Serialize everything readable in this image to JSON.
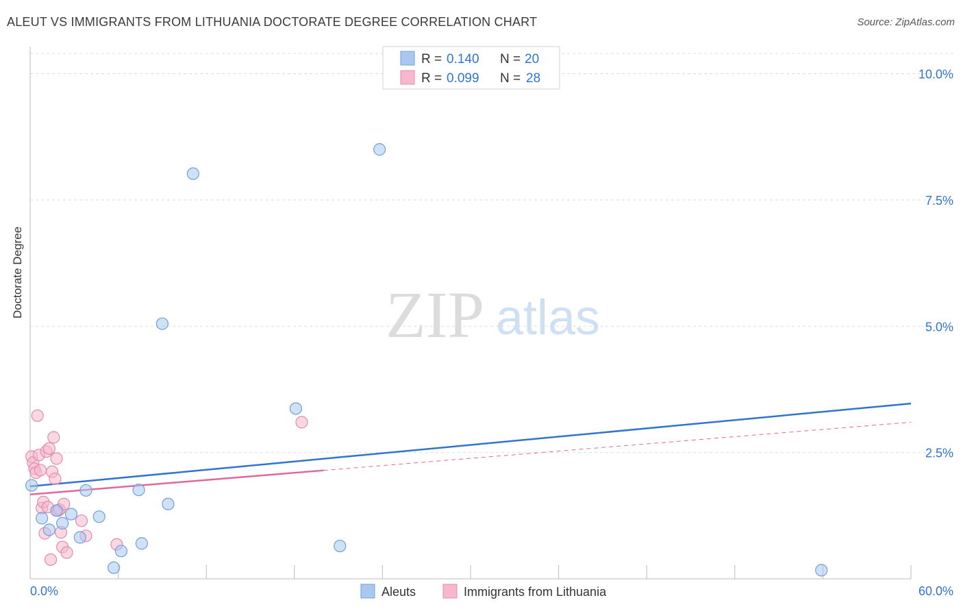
{
  "header": {
    "title": "ALEUT VS IMMIGRANTS FROM LITHUANIA DOCTORATE DEGREE CORRELATION CHART",
    "source": "Source: ZipAtlas.com"
  },
  "watermark": {
    "zip": "ZIP",
    "atlas": "atlas"
  },
  "legend_top": {
    "rows": [
      {
        "r_label": "R =",
        "r_value": "0.140",
        "n_label": "N =",
        "n_value": "20",
        "color": "#a8c8f0"
      },
      {
        "r_label": "R =",
        "r_value": "0.099",
        "n_label": "N =",
        "n_value": "28",
        "color": "#f6b8cc"
      }
    ]
  },
  "chart_data": {
    "type": "scatter",
    "ylabel": "Doctorate Degree",
    "xlabel": "",
    "xlim": [
      0,
      60
    ],
    "ylim": [
      0,
      10.4
    ],
    "x_tick_labels": [
      "0.0%",
      "60.0%"
    ],
    "y_tick_labels": [
      {
        "value": 2.5,
        "label": "2.5%"
      },
      {
        "value": 5.0,
        "label": "5.0%"
      },
      {
        "value": 7.5,
        "label": "7.5%"
      },
      {
        "value": 10.0,
        "label": "10.0%"
      }
    ],
    "grid": true,
    "legend_position": "bottom-center",
    "series": [
      {
        "name": "Aleuts",
        "color": "#a8c8f0",
        "stroke": "#6f9fd8",
        "line_color": "#2e74d0",
        "trend": {
          "x0": 0,
          "y0": 1.83,
          "x1": 60,
          "y1": 3.47,
          "dashed_from": null
        },
        "points": [
          [
            0.1,
            1.85
          ],
          [
            0.8,
            1.2
          ],
          [
            1.3,
            0.97
          ],
          [
            1.8,
            1.35
          ],
          [
            2.2,
            1.1
          ],
          [
            2.8,
            1.28
          ],
          [
            3.4,
            0.82
          ],
          [
            3.8,
            1.75
          ],
          [
            4.7,
            1.23
          ],
          [
            5.7,
            0.22
          ],
          [
            6.2,
            0.55
          ],
          [
            7.4,
            1.76
          ],
          [
            7.6,
            0.7
          ],
          [
            9.0,
            5.05
          ],
          [
            9.4,
            1.48
          ],
          [
            11.1,
            8.02
          ],
          [
            18.1,
            3.37
          ],
          [
            21.1,
            0.65
          ],
          [
            23.8,
            8.5
          ],
          [
            53.9,
            0.17
          ]
        ]
      },
      {
        "name": "Immigrants from Lithuania",
        "color": "#f6b8cc",
        "stroke": "#e48aa8",
        "line_color": "#e0679a",
        "trend": {
          "x0": 0,
          "y0": 1.67,
          "x1": 60,
          "y1": 3.1,
          "solid_until": 20
        },
        "points": [
          [
            0.1,
            2.42
          ],
          [
            0.2,
            2.3
          ],
          [
            0.3,
            2.18
          ],
          [
            0.4,
            2.1
          ],
          [
            0.5,
            3.23
          ],
          [
            0.6,
            2.45
          ],
          [
            0.7,
            2.15
          ],
          [
            0.8,
            1.4
          ],
          [
            0.9,
            1.52
          ],
          [
            1.0,
            0.9
          ],
          [
            1.1,
            2.52
          ],
          [
            1.2,
            1.42
          ],
          [
            1.3,
            2.58
          ],
          [
            1.4,
            0.38
          ],
          [
            1.5,
            2.12
          ],
          [
            1.6,
            2.8
          ],
          [
            1.7,
            1.98
          ],
          [
            1.8,
            2.38
          ],
          [
            1.9,
            1.35
          ],
          [
            2.0,
            1.37
          ],
          [
            2.1,
            0.92
          ],
          [
            2.2,
            0.63
          ],
          [
            2.3,
            1.48
          ],
          [
            2.5,
            0.52
          ],
          [
            3.5,
            1.15
          ],
          [
            3.8,
            0.85
          ],
          [
            5.9,
            0.68
          ],
          [
            18.5,
            3.1
          ]
        ]
      }
    ]
  }
}
